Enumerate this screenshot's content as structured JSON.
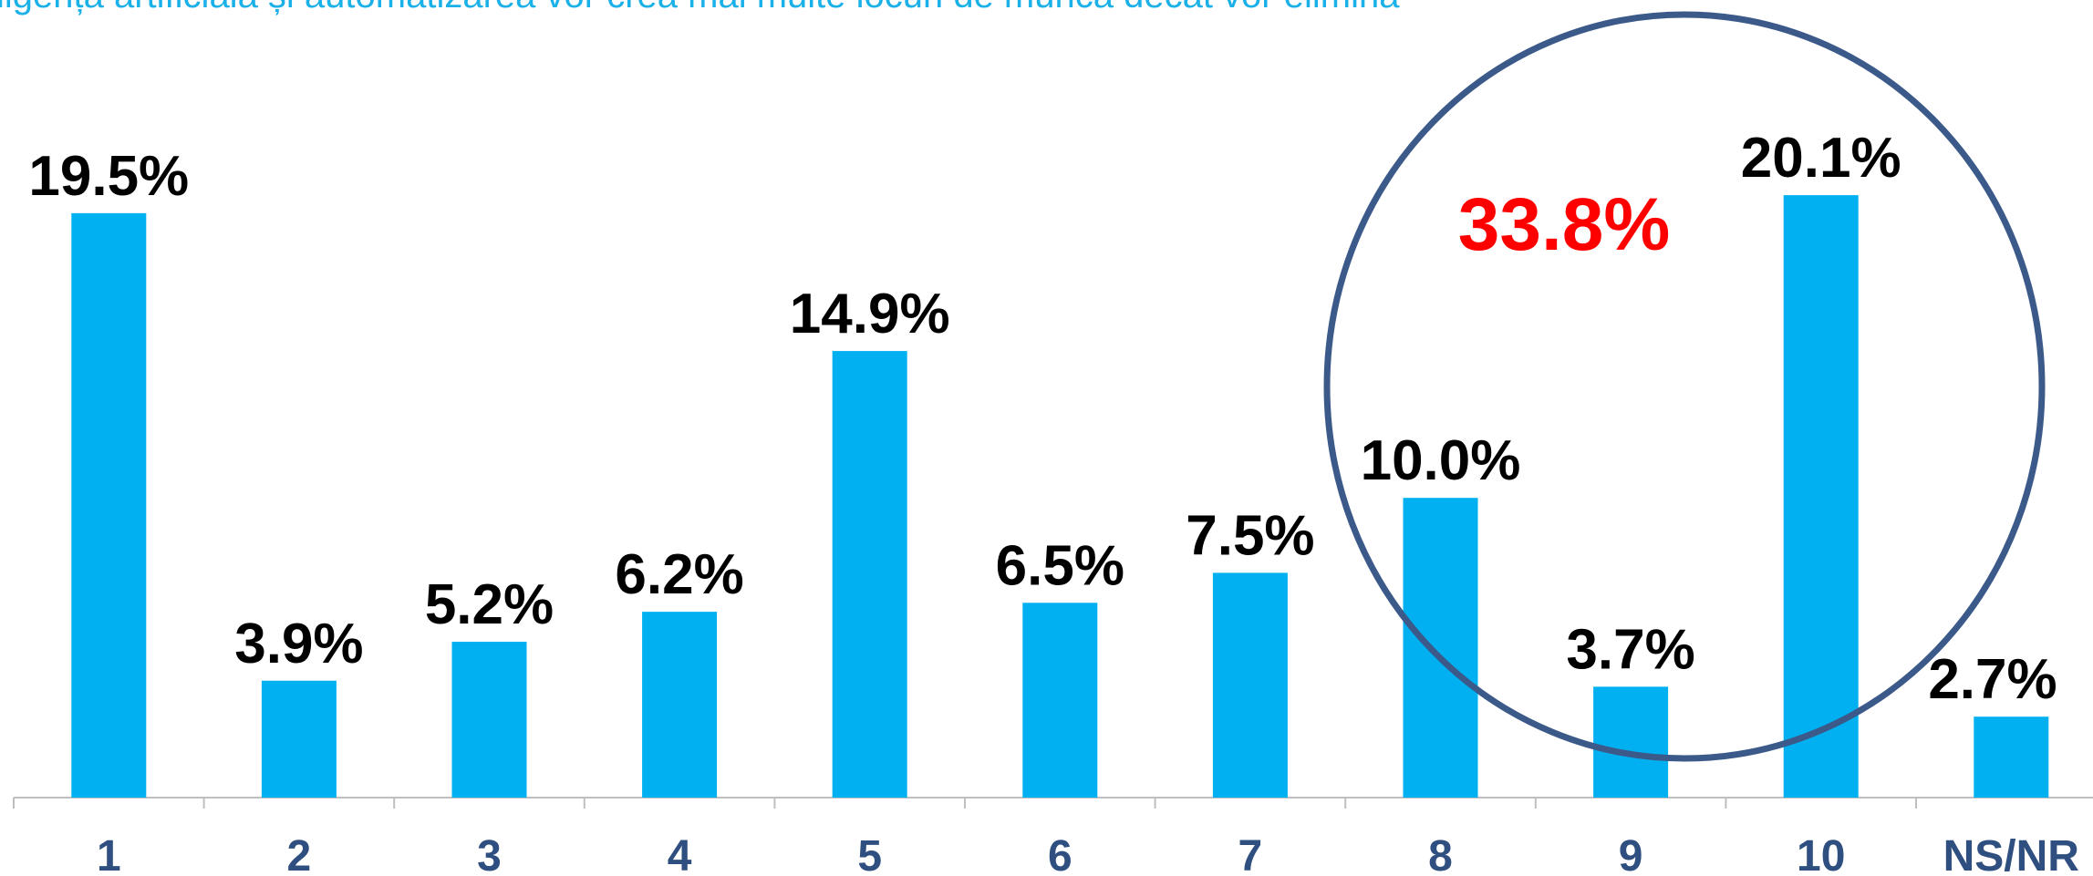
{
  "chart_data": {
    "type": "bar",
    "title": "ligența artificială și automatizarea vor crea mai multe locuri de muncă decât vor elimina",
    "annotation": "33.8%",
    "categories": [
      "1",
      "2",
      "3",
      "4",
      "5",
      "6",
      "7",
      "8",
      "9",
      "10",
      "NS/NR"
    ],
    "values": [
      19.5,
      3.9,
      5.2,
      6.2,
      14.9,
      6.5,
      7.5,
      10.0,
      3.7,
      20.1,
      2.7
    ],
    "value_labels": [
      "19.5%",
      "3.9%",
      "5.2%",
      "6.2%",
      "14.9%",
      "6.5%",
      "7.5%",
      "10.0%",
      "3.7%",
      "20.1%",
      "2.7%"
    ],
    "color": "#00b0f0",
    "ylim": [
      0,
      25
    ]
  }
}
